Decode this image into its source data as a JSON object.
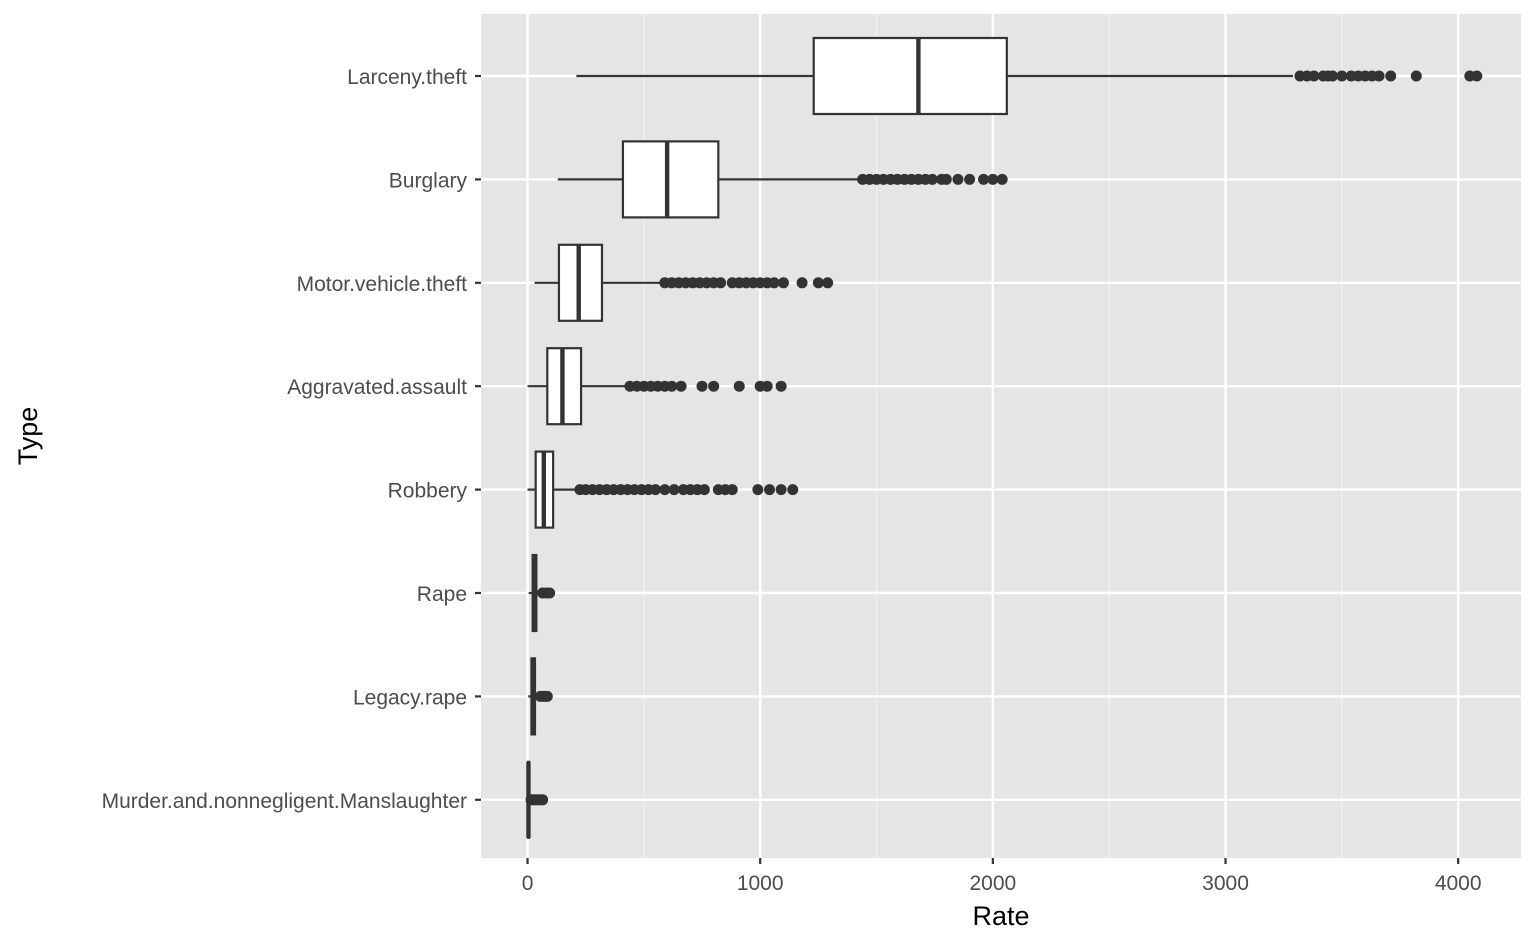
{
  "chart_data": {
    "type": "boxplot",
    "orientation": "horizontal",
    "xlabel": "Rate",
    "ylabel": "Type",
    "xlim": [
      -200,
      4270
    ],
    "x_ticks": [
      0,
      1000,
      2000,
      3000,
      4000
    ],
    "x_tick_labels": [
      "0",
      "1000",
      "2000",
      "3000",
      "4000"
    ],
    "x_minor_ticks": [
      500,
      1500,
      2500,
      3500
    ],
    "grid": true,
    "categories": [
      "Larceny.theft",
      "Burglary",
      "Motor.vehicle.theft",
      "Aggravated.assault",
      "Robbery",
      "Rape",
      "Legacy.rape",
      "Murder.and.nonnegligent.Manslaughter"
    ],
    "boxes": [
      {
        "category": "Larceny.theft",
        "whisker_low": 210,
        "q1": 1230,
        "median": 1680,
        "q3": 2060,
        "whisker_high": 3290,
        "outliers": [
          3320,
          3350,
          3380,
          3420,
          3440,
          3460,
          3500,
          3540,
          3570,
          3600,
          3630,
          3660,
          3710,
          3820,
          4050,
          4080
        ]
      },
      {
        "category": "Burglary",
        "whisker_low": 130,
        "q1": 410,
        "median": 600,
        "q3": 820,
        "whisker_high": 1420,
        "outliers": [
          1440,
          1470,
          1500,
          1530,
          1560,
          1590,
          1620,
          1650,
          1680,
          1710,
          1740,
          1780,
          1800,
          1850,
          1900,
          1960,
          2000,
          2040
        ]
      },
      {
        "category": "Motor.vehicle.theft",
        "whisker_low": 30,
        "q1": 135,
        "median": 220,
        "q3": 320,
        "whisker_high": 570,
        "outliers": [
          590,
          620,
          650,
          680,
          710,
          740,
          770,
          800,
          830,
          880,
          910,
          940,
          970,
          1000,
          1030,
          1060,
          1100,
          1180,
          1250,
          1290
        ]
      },
      {
        "category": "Aggravated.assault",
        "whisker_low": 0,
        "q1": 85,
        "median": 150,
        "q3": 230,
        "whisker_high": 420,
        "outliers": [
          440,
          470,
          500,
          530,
          560,
          590,
          620,
          660,
          750,
          800,
          910,
          1000,
          1030,
          1090
        ]
      },
      {
        "category": "Robbery",
        "whisker_low": 0,
        "q1": 35,
        "median": 70,
        "q3": 110,
        "whisker_high": 210,
        "outliers": [
          225,
          250,
          280,
          310,
          340,
          370,
          400,
          430,
          460,
          490,
          520,
          550,
          590,
          630,
          670,
          700,
          730,
          760,
          820,
          850,
          880,
          990,
          1040,
          1090,
          1140
        ]
      },
      {
        "category": "Rape",
        "whisker_low": 5,
        "q1": 22,
        "median": 30,
        "q3": 38,
        "whisker_high": 60,
        "outliers": [
          65,
          80,
          95
        ]
      },
      {
        "category": "Legacy.rape",
        "whisker_low": 3,
        "q1": 17,
        "median": 25,
        "q3": 32,
        "whisker_high": 50,
        "outliers": [
          55,
          65,
          75,
          85
        ]
      },
      {
        "category": "Murder.and.nonnegligent.Manslaughter",
        "whisker_low": 0,
        "q1": 2,
        "median": 4,
        "q3": 6,
        "whisker_high": 12,
        "outliers": [
          15,
          25,
          35,
          45,
          55,
          65
        ]
      }
    ],
    "colors": {
      "panel_bg": "#e5e5e5",
      "grid_major": "#ffffff",
      "grid_minor": "#f2f2f2",
      "box_fill": "#ffffff",
      "box_line": "#333333",
      "outlier": "#333333",
      "tick_text": "#4d4d4d"
    }
  }
}
